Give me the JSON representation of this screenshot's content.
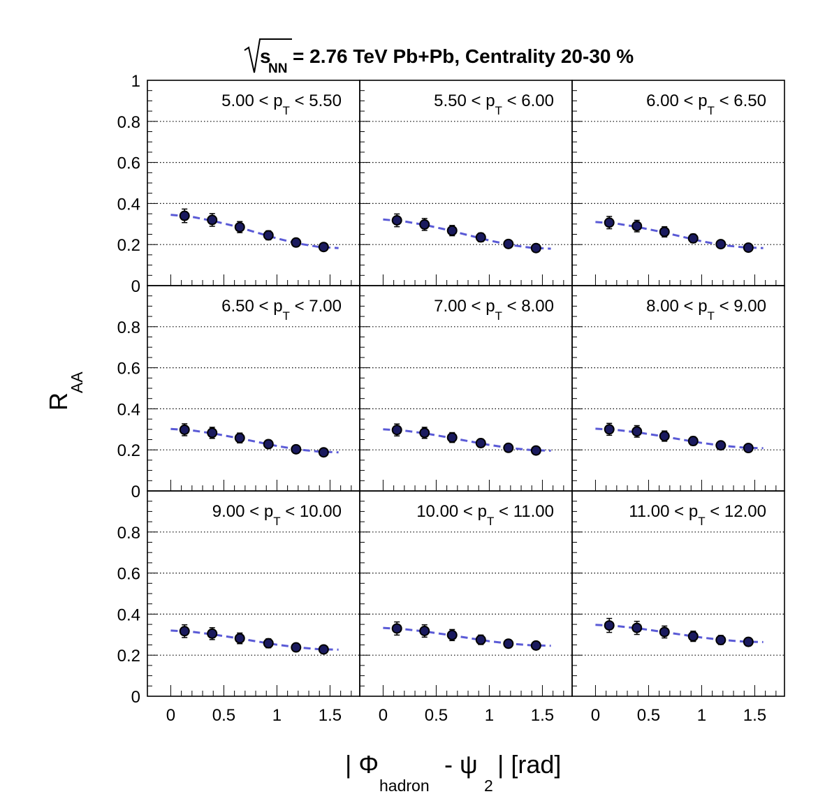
{
  "chart_data": {
    "type": "scatter",
    "title": {
      "prefix": "s",
      "subscript": "NN",
      "text": "= 2.76 TeV Pb+Pb, Centrality 20-30 %"
    },
    "ylabel": {
      "main": "R",
      "sub": "AA"
    },
    "xlabel": {
      "part1": "| Φ",
      "sub1": "hadron",
      "part2": " - ψ",
      "sub2": "2",
      "part3": " | [rad]"
    },
    "xlim": [
      -0.22,
      1.78
    ],
    "ylim": [
      0,
      1
    ],
    "x_ticks": [
      "0",
      "0.5",
      "1",
      "1.5"
    ],
    "x_tick_values": [
      0,
      0.5,
      1,
      1.5
    ],
    "y_ticks": [
      "0",
      "0.2",
      "0.4",
      "0.6",
      "0.8",
      "1"
    ],
    "y_tick_values": [
      0,
      0.2,
      0.4,
      0.6,
      0.8,
      1.0
    ],
    "grid": "horizontal-dotted",
    "marker_color": "#000000",
    "marker_fill": "#1a1a5e",
    "fit_color": "#5a5ad6",
    "x": [
      0.13,
      0.39,
      0.65,
      0.92,
      1.18,
      1.44
    ],
    "panels": [
      {
        "label": "5.00 < p",
        "sub": "T",
        "label_end": " < 5.50",
        "y": [
          0.34,
          0.32,
          0.285,
          0.245,
          0.21,
          0.188
        ],
        "err": [
          0.033,
          0.031,
          0.027,
          0.022,
          0.018,
          0.015
        ],
        "fit": [
          [
            0.0,
            0.345
          ],
          [
            0.2,
            0.335
          ],
          [
            0.4,
            0.315
          ],
          [
            0.6,
            0.29
          ],
          [
            0.8,
            0.26
          ],
          [
            1.0,
            0.23
          ],
          [
            1.2,
            0.205
          ],
          [
            1.4,
            0.188
          ],
          [
            1.58,
            0.183
          ]
        ]
      },
      {
        "label": "5.50 < p",
        "sub": "T",
        "label_end": " < 6.00",
        "y": [
          0.318,
          0.298,
          0.268,
          0.235,
          0.203,
          0.183
        ],
        "err": [
          0.031,
          0.029,
          0.025,
          0.021,
          0.017,
          0.014
        ],
        "fit": [
          [
            0.0,
            0.322
          ],
          [
            0.2,
            0.313
          ],
          [
            0.4,
            0.295
          ],
          [
            0.6,
            0.272
          ],
          [
            0.8,
            0.246
          ],
          [
            1.0,
            0.22
          ],
          [
            1.2,
            0.198
          ],
          [
            1.4,
            0.184
          ],
          [
            1.58,
            0.18
          ]
        ]
      },
      {
        "label": "6.00 < p",
        "sub": "T",
        "label_end": " < 6.50",
        "y": [
          0.307,
          0.29,
          0.262,
          0.23,
          0.202,
          0.185
        ],
        "err": [
          0.03,
          0.028,
          0.025,
          0.021,
          0.017,
          0.014
        ],
        "fit": [
          [
            0.0,
            0.31
          ],
          [
            0.2,
            0.302
          ],
          [
            0.4,
            0.285
          ],
          [
            0.6,
            0.264
          ],
          [
            0.8,
            0.24
          ],
          [
            1.0,
            0.216
          ],
          [
            1.2,
            0.197
          ],
          [
            1.4,
            0.186
          ],
          [
            1.58,
            0.183
          ]
        ]
      },
      {
        "label": "6.50 < p",
        "sub": "T",
        "label_end": " < 7.00",
        "y": [
          0.298,
          0.283,
          0.258,
          0.228,
          0.203,
          0.188
        ],
        "err": [
          0.029,
          0.027,
          0.024,
          0.02,
          0.017,
          0.014
        ],
        "fit": [
          [
            0.0,
            0.302
          ],
          [
            0.2,
            0.295
          ],
          [
            0.4,
            0.28
          ],
          [
            0.6,
            0.261
          ],
          [
            0.8,
            0.24
          ],
          [
            1.0,
            0.219
          ],
          [
            1.2,
            0.202
          ],
          [
            1.4,
            0.191
          ],
          [
            1.58,
            0.188
          ]
        ]
      },
      {
        "label": "7.00 < p",
        "sub": "T",
        "label_end": " < 8.00",
        "y": [
          0.297,
          0.283,
          0.26,
          0.233,
          0.21,
          0.197
        ],
        "err": [
          0.029,
          0.027,
          0.024,
          0.02,
          0.017,
          0.015
        ],
        "fit": [
          [
            0.0,
            0.3
          ],
          [
            0.2,
            0.294
          ],
          [
            0.4,
            0.28
          ],
          [
            0.6,
            0.262
          ],
          [
            0.8,
            0.243
          ],
          [
            1.0,
            0.224
          ],
          [
            1.2,
            0.209
          ],
          [
            1.4,
            0.199
          ],
          [
            1.58,
            0.196
          ]
        ]
      },
      {
        "label": "8.00 < p",
        "sub": "T",
        "label_end": " < 9.00",
        "y": [
          0.3,
          0.29,
          0.267,
          0.243,
          0.222,
          0.209
        ],
        "err": [
          0.029,
          0.028,
          0.025,
          0.021,
          0.018,
          0.016
        ],
        "fit": [
          [
            0.0,
            0.303
          ],
          [
            0.2,
            0.297
          ],
          [
            0.4,
            0.285
          ],
          [
            0.6,
            0.269
          ],
          [
            0.8,
            0.251
          ],
          [
            1.0,
            0.234
          ],
          [
            1.2,
            0.22
          ],
          [
            1.4,
            0.211
          ],
          [
            1.58,
            0.208
          ]
        ]
      },
      {
        "label": "9.00 < p",
        "sub": "T",
        "label_end": " < 10.00",
        "y": [
          0.317,
          0.305,
          0.282,
          0.258,
          0.238,
          0.228
        ],
        "err": [
          0.031,
          0.029,
          0.026,
          0.022,
          0.019,
          0.017
        ],
        "fit": [
          [
            0.0,
            0.32
          ],
          [
            0.2,
            0.314
          ],
          [
            0.4,
            0.301
          ],
          [
            0.6,
            0.285
          ],
          [
            0.8,
            0.268
          ],
          [
            1.0,
            0.251
          ],
          [
            1.2,
            0.238
          ],
          [
            1.4,
            0.229
          ],
          [
            1.58,
            0.227
          ]
        ]
      },
      {
        "label": "10.00 < p",
        "sub": "T",
        "label_end": " < 11.00",
        "y": [
          0.33,
          0.318,
          0.298,
          0.275,
          0.256,
          0.247
        ],
        "err": [
          0.032,
          0.03,
          0.027,
          0.023,
          0.02,
          0.018
        ],
        "fit": [
          [
            0.0,
            0.333
          ],
          [
            0.2,
            0.327
          ],
          [
            0.4,
            0.315
          ],
          [
            0.6,
            0.3
          ],
          [
            0.8,
            0.284
          ],
          [
            1.0,
            0.268
          ],
          [
            1.2,
            0.256
          ],
          [
            1.4,
            0.248
          ],
          [
            1.58,
            0.246
          ]
        ]
      },
      {
        "label": "11.00 < p",
        "sub": "T",
        "label_end": " < 12.00",
        "y": [
          0.345,
          0.333,
          0.313,
          0.292,
          0.274,
          0.265
        ],
        "err": [
          0.034,
          0.032,
          0.029,
          0.025,
          0.022,
          0.02
        ],
        "fit": [
          [
            0.0,
            0.348
          ],
          [
            0.2,
            0.342
          ],
          [
            0.4,
            0.331
          ],
          [
            0.6,
            0.316
          ],
          [
            0.8,
            0.301
          ],
          [
            1.0,
            0.286
          ],
          [
            1.2,
            0.274
          ],
          [
            1.4,
            0.266
          ],
          [
            1.58,
            0.264
          ]
        ]
      }
    ]
  }
}
